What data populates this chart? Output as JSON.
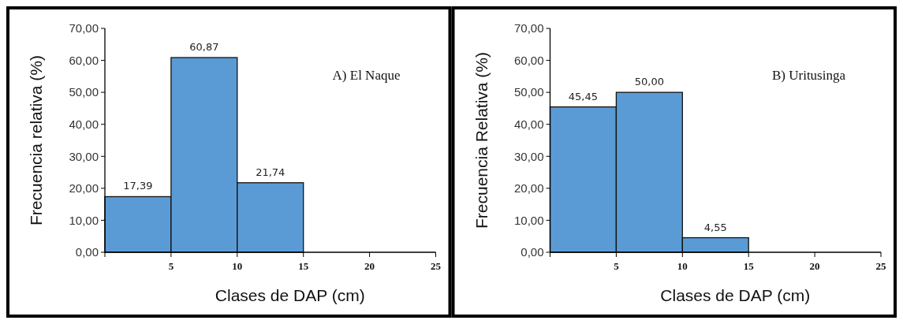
{
  "chart_data": [
    {
      "type": "histogram",
      "bins": [
        0,
        5,
        10,
        15,
        20,
        25
      ],
      "values": [
        17.39,
        60.87,
        21.74,
        0,
        0
      ],
      "color": "#5b9bd5",
      "value_labels": [
        "17,39",
        "60,87",
        "21,74",
        null,
        null
      ],
      "xlabel": "Clases de DAP (cm)",
      "ylabel": "Frecuencia relativa (%)",
      "annotations": [
        "A) El Naque"
      ],
      "xlim": [
        0,
        25
      ],
      "xticks": [
        {
          "value": 0,
          "label": null
        },
        5,
        10,
        15,
        20,
        25
      ],
      "ylim": [
        0,
        70
      ],
      "yticks": [
        {
          "value": 0,
          "label": "0,00"
        },
        {
          "value": 10,
          "label": "10,00"
        },
        {
          "value": 20,
          "label": "20,00"
        },
        {
          "value": 30,
          "label": "30,00"
        },
        {
          "value": 40,
          "label": "40,00"
        },
        {
          "value": 50,
          "label": "50,00"
        },
        {
          "value": 60,
          "label": "60,00"
        },
        {
          "value": 70,
          "label": "70,00"
        }
      ],
      "grid": false
    },
    {
      "type": "histogram",
      "bins": [
        0,
        5,
        10,
        15,
        20,
        25
      ],
      "values": [
        45.45,
        50,
        4.55,
        0,
        0
      ],
      "color": "#5b9bd5",
      "value_labels": [
        "45,45",
        "50,00",
        "4,55",
        null,
        null
      ],
      "xlabel": "Clases de DAP (cm)",
      "ylabel": "Frecuencia Relativa (%)",
      "annotations": [
        "B) Uritusinga"
      ],
      "xlim": [
        0,
        25
      ],
      "xticks": [
        {
          "value": 0,
          "label": null
        },
        5,
        10,
        15,
        20,
        25
      ],
      "ylim": [
        0,
        70
      ],
      "yticks": [
        {
          "value": 0,
          "label": "0,00"
        },
        {
          "value": 10,
          "label": "10,00"
        },
        {
          "value": 20,
          "label": "20,00"
        },
        {
          "value": 30,
          "label": "30,00"
        },
        {
          "value": 40,
          "label": "40,00"
        },
        {
          "value": 50,
          "label": "50,00"
        },
        {
          "value": 60,
          "label": "60,00"
        },
        {
          "value": 70,
          "label": "70,00"
        }
      ],
      "grid": false
    }
  ]
}
